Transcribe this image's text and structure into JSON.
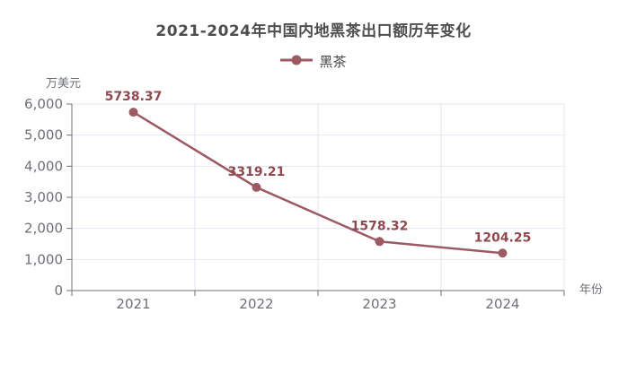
{
  "chart_data": {
    "type": "line",
    "title": "2021-2024年中国内地黑茶出口额历年变化",
    "categories": [
      "2021",
      "2022",
      "2023",
      "2024"
    ],
    "series": [
      {
        "name": "黑茶",
        "values": [
          5738.37,
          3319.21,
          1578.32,
          1204.25
        ]
      }
    ],
    "data_labels": [
      "5738.37",
      "3319.21",
      "1578.32",
      "1204.25"
    ],
    "xlabel": "年份",
    "ylabel": "万美元",
    "ylim": [
      0,
      6000
    ],
    "ytick_step": 1000,
    "ytick_labels": [
      "0",
      "1,000",
      "2,000",
      "3,000",
      "4,000",
      "5,000",
      "6,000"
    ],
    "grid": true,
    "legend_position": "top"
  },
  "colors": {
    "background": "#ffffff",
    "title": "#4e4e4e",
    "legend_text": "#464646",
    "series": "#9c5a63",
    "data_label": "#91484f",
    "axis_text": "#6e7079",
    "axis_line": "#6e7079",
    "grid_line": "#e0e6f1"
  }
}
